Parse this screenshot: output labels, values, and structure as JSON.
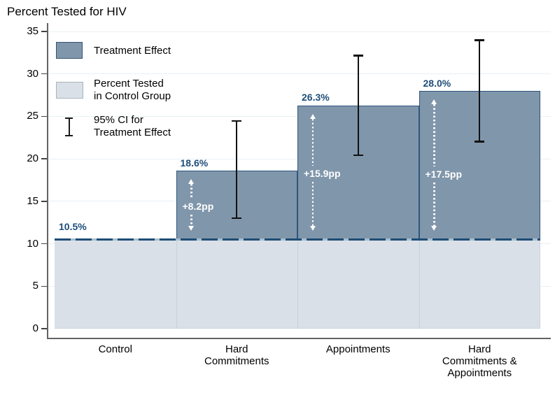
{
  "title": "Percent Tested for HIV",
  "legend": {
    "position": "top-left-inside",
    "items": [
      {
        "key": "treatment-effect",
        "label": "Treatment Effect"
      },
      {
        "key": "control-group",
        "label": "Percent Tested\nin Control Group"
      },
      {
        "key": "ci-95",
        "label": "95% CI for\nTreatment Effect"
      }
    ]
  },
  "chart_data": {
    "type": "bar",
    "subtype": "stacked-with-treatment-effects",
    "title": "Percent Tested for HIV",
    "categories": [
      "Control",
      "Hard Commitments",
      "Appointments",
      "Hard Commitments & Appointments"
    ],
    "category_lines": [
      [
        "Control"
      ],
      [
        "Hard",
        "Commitments"
      ],
      [
        "Appointments"
      ],
      [
        "Hard",
        "Commitments &",
        "Appointments"
      ]
    ],
    "series": [
      {
        "name": "Percent Tested in Control Group",
        "values": [
          10.5,
          10.5,
          10.5,
          10.5
        ]
      },
      {
        "name": "Treatment Effect",
        "values": [
          0,
          8.2,
          15.9,
          17.5
        ]
      }
    ],
    "totals": [
      10.5,
      18.6,
      26.3,
      28.0
    ],
    "total_labels": [
      "10.5%",
      "18.6%",
      "26.3%",
      "28.0%"
    ],
    "effect_labels": [
      null,
      "+8.2pp",
      "+15.9pp",
      "+17.5pp"
    ],
    "ci_95_treatment_effect": [
      null,
      [
        13.0,
        24.5
      ],
      [
        20.4,
        32.2
      ],
      [
        22.0,
        34.0
      ]
    ],
    "baseline": {
      "value": 10.5,
      "label": "10.5%",
      "style": "dashed"
    },
    "yticks": [
      0,
      5,
      10,
      15,
      20,
      25,
      30,
      35
    ],
    "ylim": [
      0,
      35
    ],
    "xlabel": "",
    "ylabel": "",
    "grid": true,
    "legend_position": "top-left-inside"
  },
  "colors": {
    "treatment_fill": "#8096ab",
    "treatment_border": "#2e567c",
    "control_fill": "#d9e0e8",
    "control_sep": "#c6d2da",
    "control_border": "#ccd6de",
    "baseline_dash": "#1f4d74",
    "baseline_underlay": "#a9bdcc",
    "grid": "#e9f0f4",
    "axis": "#636363",
    "tick": "#444444",
    "value_label": "#1e4e79",
    "ci": "#111111",
    "annotation": "#ffffff"
  }
}
